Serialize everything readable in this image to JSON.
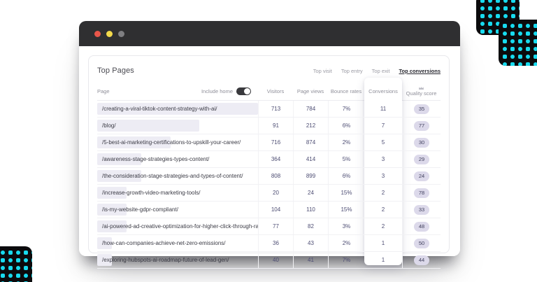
{
  "card": {
    "title": "Top Pages",
    "tabs": [
      {
        "label": "Top visit",
        "active": false
      },
      {
        "label": "Top entry",
        "active": false
      },
      {
        "label": "Top exit",
        "active": false
      },
      {
        "label": "Top conversions",
        "active": true
      }
    ],
    "table": {
      "columns": [
        "Page",
        "Visitors",
        "Page views",
        "Bounce rates",
        "Conversions",
        "Quality score"
      ],
      "include_home": {
        "label": "Include home",
        "on": true
      },
      "rows": [
        {
          "page": "/creating-a-viral-tiktok-content-strategy-with-ai/",
          "visitors": 713,
          "page_views": 784,
          "bounce_rate": "7%",
          "conversions": 11,
          "quality_score": 35
        },
        {
          "page": "/blog/",
          "visitors": 91,
          "page_views": 212,
          "bounce_rate": "6%",
          "conversions": 7,
          "quality_score": 77
        },
        {
          "page": "/5-best-ai-marketing-certifications-to-upskill-your-career/",
          "visitors": 716,
          "page_views": 874,
          "bounce_rate": "2%",
          "conversions": 5,
          "quality_score": 30
        },
        {
          "page": "/awareness-stage-strategies-types-content/",
          "visitors": 364,
          "page_views": 414,
          "bounce_rate": "5%",
          "conversions": 3,
          "quality_score": 29
        },
        {
          "page": "/the-consideration-stage-strategies-and-types-of-content/",
          "visitors": 808,
          "page_views": 899,
          "bounce_rate": "6%",
          "conversions": 3,
          "quality_score": 24
        },
        {
          "page": "/increase-growth-video-marketing-tools/",
          "visitors": 20,
          "page_views": 24,
          "bounce_rate": "15%",
          "conversions": 2,
          "quality_score": 78
        },
        {
          "page": "/is-my-website-gdpr-compliant/",
          "visitors": 104,
          "page_views": 110,
          "bounce_rate": "15%",
          "conversions": 2,
          "quality_score": 33
        },
        {
          "page": "/ai-powered-ad-creative-optimization-for-higher-click-through-rates/",
          "visitors": 77,
          "page_views": 82,
          "bounce_rate": "3%",
          "conversions": 2,
          "quality_score": 48
        },
        {
          "page": "/how-can-companies-achieve-net-zero-emissions/",
          "visitors": 36,
          "page_views": 43,
          "bounce_rate": "2%",
          "conversions": 1,
          "quality_score": 50
        },
        {
          "page": "/exploring-hubspots-ai-roadmap-future-of-lead-gen/",
          "visitors": 40,
          "page_views": 41,
          "bounce_rate": "7%",
          "conversions": 1,
          "quality_score": 44
        }
      ]
    }
  },
  "colors": {
    "accent_cyan": "#17DBEF",
    "titlebar": "#2F2F31",
    "traffic_lights": [
      "#E9564A",
      "#F2D94B",
      "#7F7F82"
    ],
    "metric_text": "#4D4D73",
    "bar_fill": "#EDECF4",
    "badge_bg": "#DCD9EA"
  }
}
